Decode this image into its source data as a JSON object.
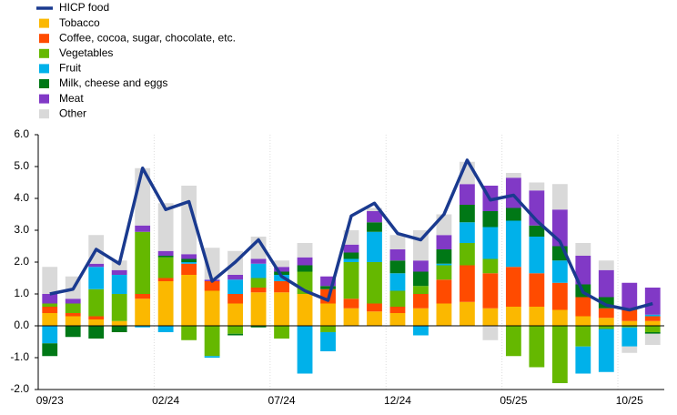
{
  "chart_data": {
    "type": "bar",
    "categories": [
      "09/23",
      null,
      null,
      null,
      null,
      "02/24",
      null,
      null,
      null,
      null,
      "07/24",
      null,
      null,
      null,
      null,
      "12/24",
      null,
      null,
      null,
      null,
      "05/25",
      null,
      null,
      null,
      null,
      "10/25",
      null
    ],
    "series": [
      {
        "name": "HICP food",
        "type": "line",
        "color": "#1a3a8f",
        "values": [
          1.0,
          1.15,
          2.4,
          1.95,
          4.95,
          3.65,
          3.9,
          1.4,
          2.0,
          2.7,
          1.55,
          1.1,
          0.8,
          3.45,
          3.85,
          2.9,
          2.7,
          3.5,
          5.2,
          3.95,
          4.1,
          3.3,
          2.65,
          1.05,
          0.65,
          0.5,
          0.7
        ]
      },
      {
        "name": "Tobacco",
        "color": "#fbb800",
        "values": [
          0.4,
          0.3,
          0.2,
          0.15,
          0.85,
          1.4,
          1.6,
          1.1,
          0.7,
          1.05,
          1.05,
          1.0,
          0.7,
          0.55,
          0.45,
          0.4,
          0.55,
          0.7,
          0.75,
          0.55,
          0.6,
          0.6,
          0.5,
          0.3,
          0.25,
          0.15,
          0.15
        ]
      },
      {
        "name": "Coffee, cocoa, sugar, chocolate, etc.",
        "color": "#ff4b00",
        "values": [
          0.2,
          0.1,
          0.1,
          0.0,
          0.15,
          0.1,
          0.35,
          0.3,
          0.3,
          0.15,
          0.35,
          0.0,
          0.45,
          0.3,
          0.25,
          0.2,
          0.45,
          0.75,
          1.15,
          1.1,
          1.25,
          1.05,
          0.85,
          0.6,
          0.3,
          0.35,
          0.15
        ]
      },
      {
        "name": "Vegetables",
        "color": "#65b800",
        "values": [
          0.1,
          0.3,
          0.85,
          0.85,
          1.95,
          0.65,
          -0.45,
          -0.95,
          -0.25,
          0.3,
          -0.4,
          0.7,
          -0.2,
          1.15,
          1.3,
          0.5,
          0.25,
          0.45,
          0.7,
          0.45,
          -0.95,
          -1.3,
          -1.8,
          -0.65,
          -0.1,
          -0.05,
          -0.2
        ]
      },
      {
        "name": "Fruit",
        "color": "#00b1ea",
        "values": [
          -0.55,
          0.0,
          0.7,
          0.6,
          -0.05,
          -0.2,
          0.05,
          -0.05,
          0.45,
          0.45,
          0.2,
          -1.5,
          -0.6,
          0.1,
          0.95,
          0.55,
          -0.3,
          0.05,
          0.65,
          1.0,
          1.45,
          1.15,
          0.7,
          -0.85,
          -1.35,
          -0.6,
          0.05
        ]
      },
      {
        "name": "Milk, cheese and eggs",
        "color": "#007816",
        "values": [
          -0.4,
          -0.35,
          -0.4,
          -0.2,
          0.0,
          0.05,
          0.1,
          0.0,
          -0.05,
          -0.05,
          0.1,
          0.2,
          0.1,
          0.2,
          0.3,
          0.4,
          0.45,
          0.45,
          0.55,
          0.5,
          0.4,
          0.35,
          0.45,
          0.4,
          0.35,
          0.05,
          -0.05
        ]
      },
      {
        "name": "Meat",
        "color": "#8139c6",
        "values": [
          0.3,
          0.15,
          0.1,
          0.15,
          0.2,
          0.15,
          0.15,
          0.05,
          0.15,
          0.15,
          0.15,
          0.25,
          0.3,
          0.25,
          0.35,
          0.35,
          0.35,
          0.45,
          0.65,
          0.8,
          0.95,
          1.1,
          1.15,
          0.9,
          0.85,
          0.8,
          0.85
        ]
      },
      {
        "name": "Other",
        "color": "#d9d9d9",
        "values": [
          0.85,
          0.7,
          0.9,
          0.3,
          1.8,
          1.5,
          2.15,
          1.0,
          0.75,
          0.7,
          0.2,
          0.45,
          0.0,
          0.45,
          0.1,
          0.45,
          0.95,
          0.65,
          0.7,
          -0.45,
          0.15,
          0.25,
          0.8,
          0.4,
          0.3,
          -0.2,
          -0.35
        ]
      }
    ],
    "ylim": [
      -2,
      6
    ],
    "yticks": [
      {
        "value": -2,
        "label": "-2.0"
      },
      {
        "value": -1,
        "label": "-1.0"
      },
      {
        "value": 0,
        "label": "0.0"
      },
      {
        "value": 1,
        "label": "1.0"
      },
      {
        "value": 2,
        "label": "2.0"
      },
      {
        "value": 3,
        "label": "3.0"
      },
      {
        "value": 4,
        "label": "4.0"
      },
      {
        "value": 5,
        "label": "5.0"
      },
      {
        "value": 6,
        "label": "6.0"
      }
    ]
  }
}
